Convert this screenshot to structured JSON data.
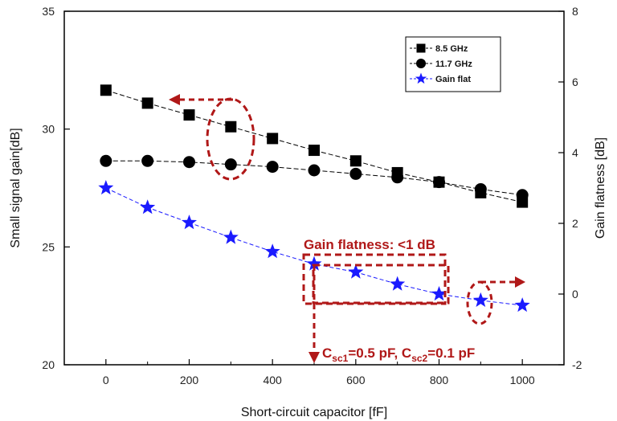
{
  "chart_data": {
    "type": "line",
    "xlabel": "Short-circuit capacitor [fF]",
    "ylabel_left": "Small signal gain[dB]",
    "ylabel_right": "Gain flatness [dB]",
    "xlim": [
      -100,
      1100
    ],
    "ylim_left": [
      20,
      35
    ],
    "ylim_right": [
      -2,
      8
    ],
    "x_ticks": [
      0,
      200,
      400,
      600,
      800,
      1000
    ],
    "y_left_ticks": [
      20,
      25,
      30,
      35
    ],
    "y_right_ticks": [
      -2,
      0,
      2,
      4,
      6,
      8
    ],
    "x": [
      0,
      100,
      200,
      300,
      400,
      500,
      600,
      700,
      800,
      900,
      1000
    ],
    "series": [
      {
        "name": "8.5 GHz",
        "axis": "left",
        "marker": "square",
        "color": "#000000",
        "values": [
          31.65,
          31.1,
          30.6,
          30.1,
          29.6,
          29.1,
          28.65,
          28.15,
          27.75,
          27.3,
          26.9
        ]
      },
      {
        "name": "11.7 GHz",
        "axis": "left",
        "marker": "circle",
        "color": "#000000",
        "values": [
          28.65,
          28.65,
          28.6,
          28.5,
          28.4,
          28.25,
          28.1,
          27.95,
          27.75,
          27.45,
          27.2
        ]
      },
      {
        "name": "Gain flat",
        "axis": "right",
        "marker": "star",
        "color": "#1a1aff",
        "values": [
          3.0,
          2.45,
          2.02,
          1.6,
          1.2,
          0.85,
          0.62,
          0.28,
          0.0,
          -0.18,
          -0.32
        ]
      }
    ],
    "legend_position": "top-right",
    "annotations": {
      "flatness_label": "Gain flatness: <1 dB",
      "cap_label_prefix": "C",
      "cap_label_sub1": "sc1",
      "cap_label_mid": "=0.5 pF, C",
      "cap_label_sub2": "sc2",
      "cap_label_suffix": "=0.1 pF"
    },
    "colors": {
      "annotation": "#b01818",
      "star": "#1a1aff"
    }
  }
}
